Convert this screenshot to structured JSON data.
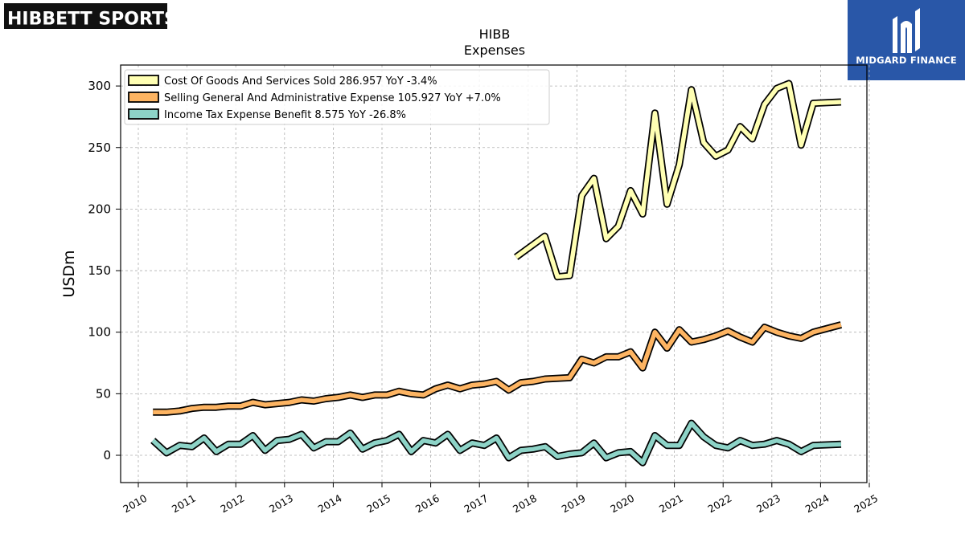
{
  "logos": {
    "left": {
      "text": "HIBBETT SPORTS",
      "mark": "®"
    },
    "right": {
      "text": "MIDGARD FINANCE"
    }
  },
  "colors": {
    "cogs": "#ffffb3",
    "sga": "#fdb462",
    "tax": "#8dd3c7",
    "outline": "#000000",
    "grid": "#b0b0b0",
    "midgard_bg": "#2957a8"
  },
  "chart_data": {
    "type": "line",
    "title": "HIBB",
    "subtitle": "Expenses",
    "ylabel": "USDm",
    "xlabel": "",
    "xlim": [
      2009.65,
      2025.0
    ],
    "ylim": [
      -22,
      318
    ],
    "grid": true,
    "legend_position": "top-left",
    "yticks": [
      0,
      50,
      100,
      150,
      200,
      250,
      300
    ],
    "xticks": [
      "2010",
      "2011",
      "2012",
      "2013",
      "2014",
      "2015",
      "2016",
      "2017",
      "2018",
      "2019",
      "2020",
      "2021",
      "2022",
      "2023",
      "2024",
      "2025"
    ],
    "series": [
      {
        "name": "Cost Of Goods And Services Sold",
        "legend": "Cost Of Goods And Services Sold  286.957 YoY -3.4%",
        "color": "#ffffb3",
        "points": [
          [
            2017.75,
            161
          ],
          [
            2018.34,
            178
          ],
          [
            2018.6,
            145
          ],
          [
            2018.85,
            146
          ],
          [
            2019.1,
            211
          ],
          [
            2019.35,
            225
          ],
          [
            2019.6,
            176
          ],
          [
            2019.85,
            186
          ],
          [
            2020.1,
            215
          ],
          [
            2020.35,
            196
          ],
          [
            2020.6,
            278
          ],
          [
            2020.85,
            204
          ],
          [
            2021.1,
            236
          ],
          [
            2021.35,
            297
          ],
          [
            2021.6,
            254
          ],
          [
            2021.85,
            243
          ],
          [
            2022.1,
            248
          ],
          [
            2022.35,
            267
          ],
          [
            2022.6,
            257
          ],
          [
            2022.85,
            285
          ],
          [
            2023.1,
            298
          ],
          [
            2023.35,
            302
          ],
          [
            2023.6,
            252
          ],
          [
            2023.85,
            286
          ],
          [
            2024.42,
            287
          ]
        ]
      },
      {
        "name": "Selling General And Administrative Expense",
        "legend": "Selling General And Administrative Expense  105.927 YoY +7.0%",
        "color": "#fdb462",
        "points": [
          [
            2010.3,
            35
          ],
          [
            2010.58,
            35
          ],
          [
            2010.85,
            36
          ],
          [
            2011.1,
            38
          ],
          [
            2011.35,
            39
          ],
          [
            2011.6,
            39
          ],
          [
            2011.85,
            40
          ],
          [
            2012.1,
            40
          ],
          [
            2012.35,
            43
          ],
          [
            2012.6,
            41
          ],
          [
            2012.85,
            42
          ],
          [
            2013.1,
            43
          ],
          [
            2013.35,
            45
          ],
          [
            2013.6,
            44
          ],
          [
            2013.85,
            46
          ],
          [
            2014.1,
            47
          ],
          [
            2014.35,
            49
          ],
          [
            2014.6,
            47
          ],
          [
            2014.85,
            49
          ],
          [
            2015.1,
            49
          ],
          [
            2015.35,
            52
          ],
          [
            2015.6,
            50
          ],
          [
            2015.85,
            49
          ],
          [
            2016.1,
            54
          ],
          [
            2016.35,
            57
          ],
          [
            2016.6,
            54
          ],
          [
            2016.85,
            57
          ],
          [
            2017.1,
            58
          ],
          [
            2017.35,
            60
          ],
          [
            2017.6,
            53
          ],
          [
            2017.85,
            59
          ],
          [
            2018.1,
            60
          ],
          [
            2018.35,
            62
          ],
          [
            2018.85,
            63
          ],
          [
            2019.1,
            78
          ],
          [
            2019.35,
            75
          ],
          [
            2019.6,
            80
          ],
          [
            2019.85,
            80
          ],
          [
            2020.1,
            84
          ],
          [
            2020.35,
            71
          ],
          [
            2020.6,
            100
          ],
          [
            2020.85,
            87
          ],
          [
            2021.1,
            102
          ],
          [
            2021.35,
            92
          ],
          [
            2021.6,
            94
          ],
          [
            2021.85,
            97
          ],
          [
            2022.1,
            101
          ],
          [
            2022.35,
            96
          ],
          [
            2022.6,
            92
          ],
          [
            2022.85,
            104
          ],
          [
            2023.1,
            100
          ],
          [
            2023.35,
            97
          ],
          [
            2023.6,
            95
          ],
          [
            2023.85,
            100
          ],
          [
            2024.42,
            106
          ]
        ]
      },
      {
        "name": "Income Tax Expense Benefit",
        "legend": "Income Tax Expense Benefit  8.575 YoY -26.8%",
        "color": "#8dd3c7",
        "points": [
          [
            2010.3,
            12
          ],
          [
            2010.58,
            2
          ],
          [
            2010.85,
            8
          ],
          [
            2011.1,
            7
          ],
          [
            2011.35,
            14
          ],
          [
            2011.6,
            3
          ],
          [
            2011.85,
            9
          ],
          [
            2012.1,
            9
          ],
          [
            2012.35,
            16
          ],
          [
            2012.6,
            4
          ],
          [
            2012.85,
            12
          ],
          [
            2013.1,
            13
          ],
          [
            2013.35,
            17
          ],
          [
            2013.6,
            6
          ],
          [
            2013.85,
            11
          ],
          [
            2014.1,
            11
          ],
          [
            2014.35,
            18
          ],
          [
            2014.6,
            5
          ],
          [
            2014.85,
            10
          ],
          [
            2015.1,
            12
          ],
          [
            2015.35,
            17
          ],
          [
            2015.6,
            3
          ],
          [
            2015.85,
            12
          ],
          [
            2016.1,
            10
          ],
          [
            2016.35,
            17
          ],
          [
            2016.6,
            4
          ],
          [
            2016.85,
            10
          ],
          [
            2017.1,
            8
          ],
          [
            2017.35,
            14
          ],
          [
            2017.6,
            -2
          ],
          [
            2017.85,
            4
          ],
          [
            2018.1,
            5
          ],
          [
            2018.35,
            7
          ],
          [
            2018.6,
            -1
          ],
          [
            2018.85,
            1
          ],
          [
            2019.1,
            2
          ],
          [
            2019.35,
            10
          ],
          [
            2019.6,
            -2
          ],
          [
            2019.85,
            2
          ],
          [
            2020.1,
            3
          ],
          [
            2020.35,
            -6
          ],
          [
            2020.6,
            16
          ],
          [
            2020.85,
            8
          ],
          [
            2021.1,
            8
          ],
          [
            2021.35,
            26
          ],
          [
            2021.6,
            15
          ],
          [
            2021.85,
            8
          ],
          [
            2022.1,
            6
          ],
          [
            2022.35,
            12
          ],
          [
            2022.6,
            8
          ],
          [
            2022.85,
            9
          ],
          [
            2023.1,
            12
          ],
          [
            2023.35,
            9
          ],
          [
            2023.6,
            3
          ],
          [
            2023.85,
            8
          ],
          [
            2024.42,
            9
          ]
        ]
      }
    ]
  }
}
